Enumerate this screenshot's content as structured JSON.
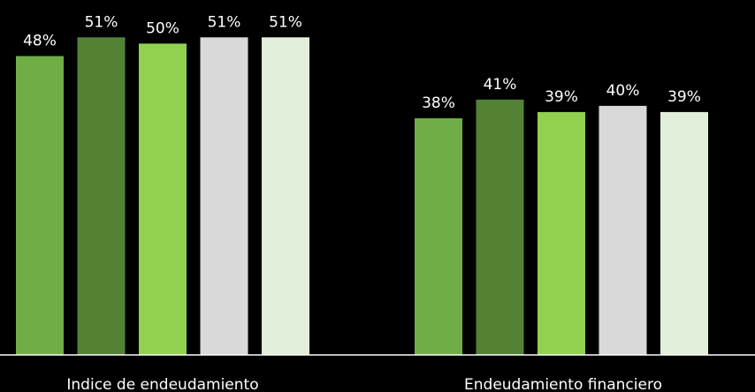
{
  "chart_data": {
    "type": "bar",
    "categories": [
      "Indice de endeudamiento",
      "Endeudamiento financiero"
    ],
    "series": [
      {
        "values": [
          48,
          38
        ],
        "labels": [
          "48%",
          "38%"
        ],
        "color": "#70ad47"
      },
      {
        "values": [
          51,
          41
        ],
        "labels": [
          "51%",
          "41%"
        ],
        "color": "#548235"
      },
      {
        "values": [
          50,
          39
        ],
        "labels": [
          "50%",
          "39%"
        ],
        "color": "#92d050"
      },
      {
        "values": [
          51,
          40
        ],
        "labels": [
          "51%",
          "40%"
        ],
        "color": "#d9d9d9"
      },
      {
        "values": [
          51,
          39
        ],
        "labels": [
          "51%",
          "39%"
        ],
        "color": "#e2efda"
      }
    ],
    "value_unit": "%",
    "ylim": [
      0,
      57
    ],
    "grid": false,
    "legend": "none",
    "background": "#000000",
    "text_color": "#ffffff",
    "axis_color": "#ffffff"
  }
}
